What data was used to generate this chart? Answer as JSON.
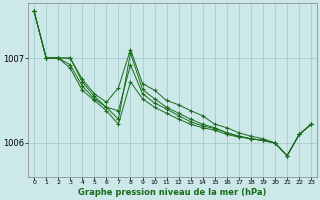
{
  "background_color": "#cce8e8",
  "plot_bg_color": "#cce8e8",
  "grid_color": "#a0c8c8",
  "line_color": "#1a6b1a",
  "xlabel": "Graphe pression niveau de la mer (hPa)",
  "ylim": [
    1005.6,
    1007.65
  ],
  "xlim": [
    -0.5,
    23.5
  ],
  "yticks": [
    1006,
    1007
  ],
  "xticks": [
    0,
    1,
    2,
    3,
    4,
    5,
    6,
    7,
    8,
    9,
    10,
    11,
    12,
    13,
    14,
    15,
    16,
    17,
    18,
    19,
    20,
    21,
    22,
    23
  ],
  "series": [
    [
      1007.55,
      1007.0,
      1007.0,
      1007.0,
      1006.75,
      1006.58,
      1006.48,
      1006.65,
      1007.1,
      1006.7,
      1006.62,
      1006.5,
      1006.45,
      1006.38,
      1006.32,
      1006.22,
      1006.18,
      1006.12,
      1006.08,
      1006.05,
      1006.0,
      1005.85,
      1006.1,
      1006.22
    ],
    [
      1007.55,
      1007.0,
      1007.0,
      1007.0,
      1006.72,
      1006.55,
      1006.42,
      1006.28,
      1007.06,
      1006.63,
      1006.52,
      1006.42,
      1006.35,
      1006.28,
      1006.22,
      1006.18,
      1006.12,
      1006.08,
      1006.05,
      1006.03,
      1006.0,
      1005.85,
      1006.1,
      1006.22
    ],
    [
      1007.55,
      1007.0,
      1007.0,
      1006.88,
      1006.62,
      1006.5,
      1006.38,
      1006.22,
      1006.72,
      1006.52,
      1006.42,
      1006.35,
      1006.28,
      1006.22,
      1006.18,
      1006.15,
      1006.1,
      1006.07,
      1006.05,
      1006.03,
      1006.0,
      1005.85,
      1006.1,
      1006.22
    ],
    [
      1007.55,
      1007.0,
      1007.0,
      1006.92,
      1006.67,
      1006.52,
      1006.42,
      1006.38,
      1006.92,
      1006.58,
      1006.47,
      1006.4,
      1006.32,
      1006.25,
      1006.2,
      1006.17,
      1006.12,
      1006.08,
      1006.05,
      1006.03,
      1006.0,
      1005.85,
      1006.1,
      1006.22
    ]
  ]
}
